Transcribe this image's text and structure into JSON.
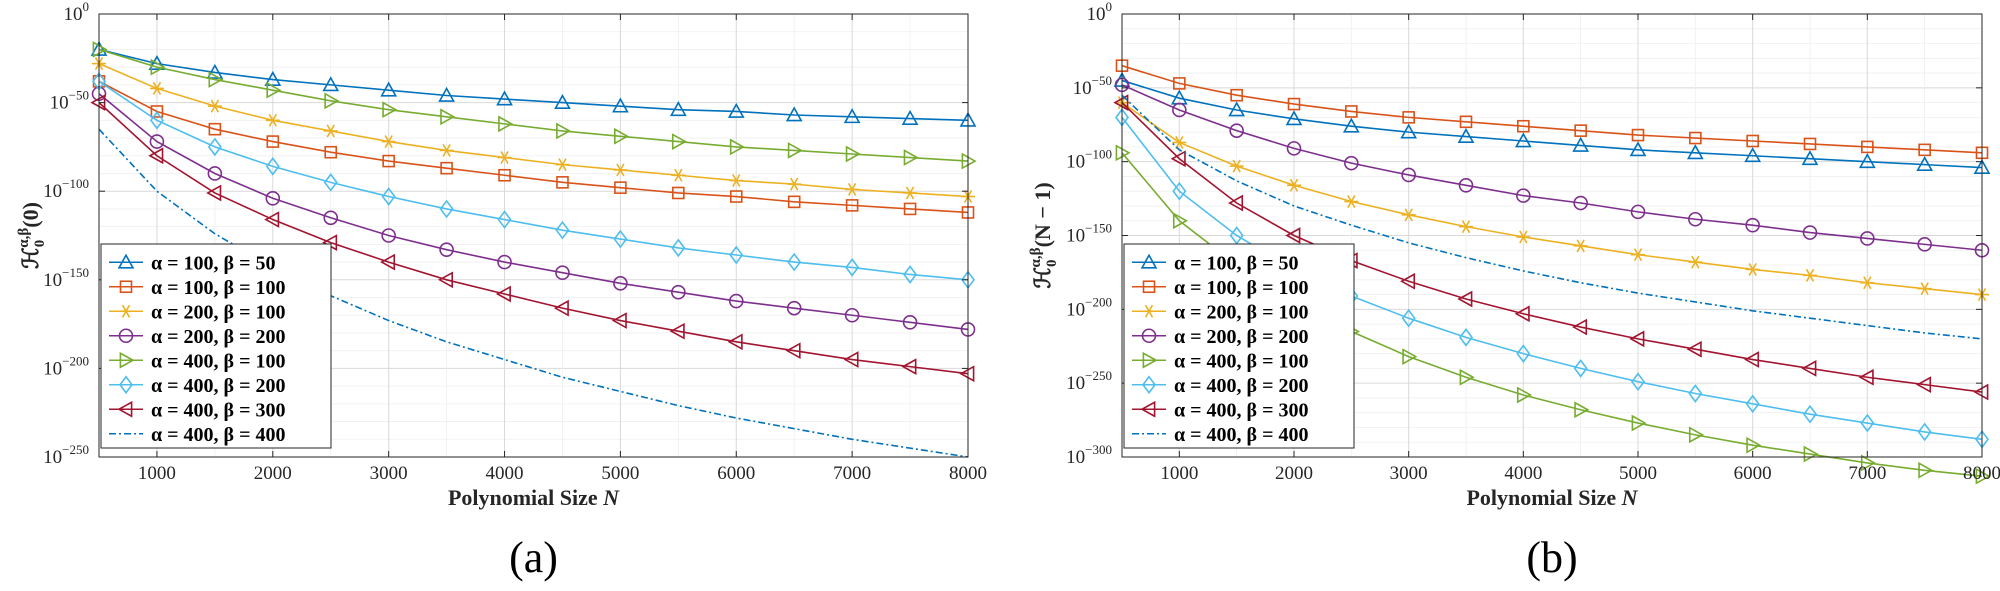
{
  "chart_data": [
    {
      "type": "line",
      "caption": "(a)",
      "ylabel": "ℋ₀^{α,β}(0)",
      "xlabel": "Polynomial Size N",
      "xlim": [
        500,
        8000
      ],
      "ylim": [
        -250,
        0
      ],
      "y_scale": "log10",
      "x_ticks": [
        1000,
        2000,
        3000,
        4000,
        5000,
        6000,
        7000,
        8000
      ],
      "y_ticks": [
        0,
        -50,
        -100,
        -150,
        -200,
        -250
      ],
      "grid": true,
      "legend_position": "lower-left",
      "x": [
        500,
        1000,
        1500,
        2000,
        2500,
        3000,
        3500,
        4000,
        4500,
        5000,
        5500,
        6000,
        6500,
        7000,
        7500,
        8000
      ],
      "series": [
        {
          "name": "α = 100, β = 50",
          "color": "#0072BD",
          "marker": "triangle-up",
          "line": "solid",
          "values": [
            -20,
            -28,
            -33,
            -37,
            -40,
            -43,
            -46,
            -48,
            -50,
            -52,
            -54,
            -55,
            -57,
            -58,
            -59,
            -60
          ]
        },
        {
          "name": "α = 100, β = 100",
          "color": "#D95319",
          "marker": "square",
          "line": "solid",
          "values": [
            -38,
            -55,
            -65,
            -72,
            -78,
            -83,
            -87,
            -91,
            -95,
            -98,
            -101,
            -103,
            -106,
            -108,
            -110,
            -112
          ]
        },
        {
          "name": "α = 200, β = 100",
          "color": "#EDB120",
          "marker": "asterisk",
          "line": "solid",
          "values": [
            -28,
            -42,
            -52,
            -60,
            -66,
            -72,
            -77,
            -81,
            -85,
            -88,
            -91,
            -94,
            -96,
            -99,
            -101,
            -103
          ]
        },
        {
          "name": "α = 200, β = 200",
          "color": "#7E2F8E",
          "marker": "circle",
          "line": "solid",
          "values": [
            -45,
            -72,
            -90,
            -104,
            -115,
            -125,
            -133,
            -140,
            -146,
            -152,
            -157,
            -162,
            -166,
            -170,
            -174,
            -178
          ]
        },
        {
          "name": "α = 400, β = 100",
          "color": "#77AC30",
          "marker": "triangle-right",
          "line": "solid",
          "values": [
            -20,
            -30,
            -37,
            -43,
            -49,
            -54,
            -58,
            -62,
            -66,
            -69,
            -72,
            -75,
            -77,
            -79,
            -81,
            -83
          ]
        },
        {
          "name": "α = 400, β = 200",
          "color": "#4DBEEE",
          "marker": "diamond",
          "line": "solid",
          "values": [
            -38,
            -60,
            -75,
            -86,
            -95,
            -103,
            -110,
            -116,
            -122,
            -127,
            -132,
            -136,
            -140,
            -143,
            -147,
            -150
          ]
        },
        {
          "name": "α = 400, β = 300",
          "color": "#A2142F",
          "marker": "triangle-left",
          "line": "solid",
          "values": [
            -50,
            -80,
            -101,
            -116,
            -129,
            -140,
            -150,
            -158,
            -166,
            -173,
            -179,
            -185,
            -190,
            -195,
            -199,
            -203
          ]
        },
        {
          "name": "α = 400, β = 400",
          "color": "#0072BD",
          "marker": "none",
          "line": "dashdot",
          "values": [
            -65,
            -100,
            -124,
            -143,
            -159,
            -173,
            -185,
            -195,
            -205,
            -213,
            -221,
            -228,
            -234,
            -240,
            -245,
            -250
          ]
        }
      ]
    },
    {
      "type": "line",
      "caption": "(b)",
      "ylabel": "ℋ₀^{α,β}(N − 1)",
      "xlabel": "Polynomial Size N",
      "xlim": [
        500,
        8000
      ],
      "ylim": [
        -300,
        0
      ],
      "y_scale": "log10",
      "x_ticks": [
        1000,
        2000,
        3000,
        4000,
        5000,
        6000,
        7000,
        8000
      ],
      "y_ticks": [
        0,
        -50,
        -100,
        -150,
        -200,
        -250,
        -300
      ],
      "grid": true,
      "legend_position": "lower-left",
      "x": [
        500,
        1000,
        1500,
        2000,
        2500,
        3000,
        3500,
        4000,
        4500,
        5000,
        5500,
        6000,
        6500,
        7000,
        7500,
        8000
      ],
      "series": [
        {
          "name": "α = 100, β = 50",
          "color": "#0072BD",
          "marker": "triangle-up",
          "line": "solid",
          "values": [
            -45,
            -57,
            -65,
            -71,
            -76,
            -80,
            -83,
            -86,
            -89,
            -92,
            -94,
            -96,
            -98,
            -100,
            -102,
            -104
          ]
        },
        {
          "name": "α = 100, β = 100",
          "color": "#D95319",
          "marker": "square",
          "line": "solid",
          "values": [
            -35,
            -47,
            -55,
            -61,
            -66,
            -70,
            -73,
            -76,
            -79,
            -82,
            -84,
            -86,
            -88,
            -90,
            -92,
            -94
          ]
        },
        {
          "name": "α = 200, β = 100",
          "color": "#EDB120",
          "marker": "asterisk",
          "line": "solid",
          "values": [
            -60,
            -87,
            -103,
            -116,
            -127,
            -136,
            -144,
            -151,
            -157,
            -163,
            -168,
            -173,
            -177,
            -182,
            -186,
            -190
          ]
        },
        {
          "name": "α = 200, β = 200",
          "color": "#7E2F8E",
          "marker": "circle",
          "line": "solid",
          "values": [
            -48,
            -65,
            -79,
            -91,
            -101,
            -109,
            -116,
            -123,
            -128,
            -134,
            -139,
            -143,
            -148,
            -152,
            -156,
            -160
          ]
        },
        {
          "name": "α = 400, β = 100",
          "color": "#77AC30",
          "marker": "triangle-right",
          "line": "solid",
          "values": [
            -94,
            -140,
            -170,
            -195,
            -215,
            -232,
            -246,
            -258,
            -268,
            -277,
            -285,
            -292,
            -298,
            -304,
            -309,
            -313
          ]
        },
        {
          "name": "α = 400, β = 200",
          "color": "#4DBEEE",
          "marker": "diamond",
          "line": "solid",
          "values": [
            -70,
            -120,
            -150,
            -173,
            -191,
            -206,
            -219,
            -230,
            -240,
            -249,
            -257,
            -264,
            -271,
            -277,
            -283,
            -288
          ]
        },
        {
          "name": "α = 400, β = 300",
          "color": "#A2142F",
          "marker": "triangle-left",
          "line": "solid",
          "values": [
            -60,
            -98,
            -128,
            -150,
            -167,
            -181,
            -193,
            -203,
            -212,
            -220,
            -227,
            -234,
            -240,
            -246,
            -251,
            -256
          ]
        },
        {
          "name": "α = 400, β = 400",
          "color": "#0072BD",
          "marker": "none",
          "line": "dashdot",
          "values": [
            -55,
            -92,
            -113,
            -130,
            -143,
            -155,
            -165,
            -174,
            -182,
            -189,
            -195,
            -201,
            -206,
            -211,
            -216,
            -220
          ]
        }
      ]
    }
  ]
}
